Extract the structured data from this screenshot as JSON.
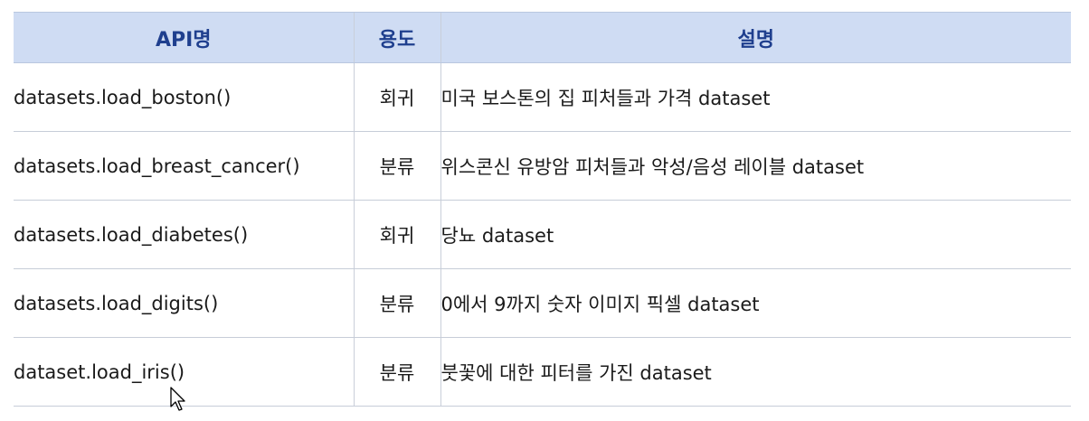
{
  "table": {
    "headers": [
      "API명",
      "용도",
      "설명"
    ],
    "rows": [
      [
        "datasets.load_boston()",
        "회귀",
        "미국 보스톤의 집 피처들과 가격 dataset"
      ],
      [
        "datasets.load_breast_cancer()",
        "분류",
        "위스콘신 유방암 피처들과 악성/음성 레이블 dataset"
      ],
      [
        "datasets.load_diabetes()",
        "회귀",
        "당뇨 dataset"
      ],
      [
        "datasets.load_digits()",
        "분류",
        "0에서 9까지 숫자 이미지 픽셀 dataset"
      ],
      [
        "dataset.load_iris()",
        "분류",
        "붓꽃에 대한 피터를 가진 dataset"
      ]
    ]
  },
  "colors": {
    "header_bg": "#cfdcf3",
    "header_text": "#1f3f8e",
    "border": "#c7cdd8"
  },
  "icons": {
    "cursor": "mouse-pointer-icon"
  }
}
